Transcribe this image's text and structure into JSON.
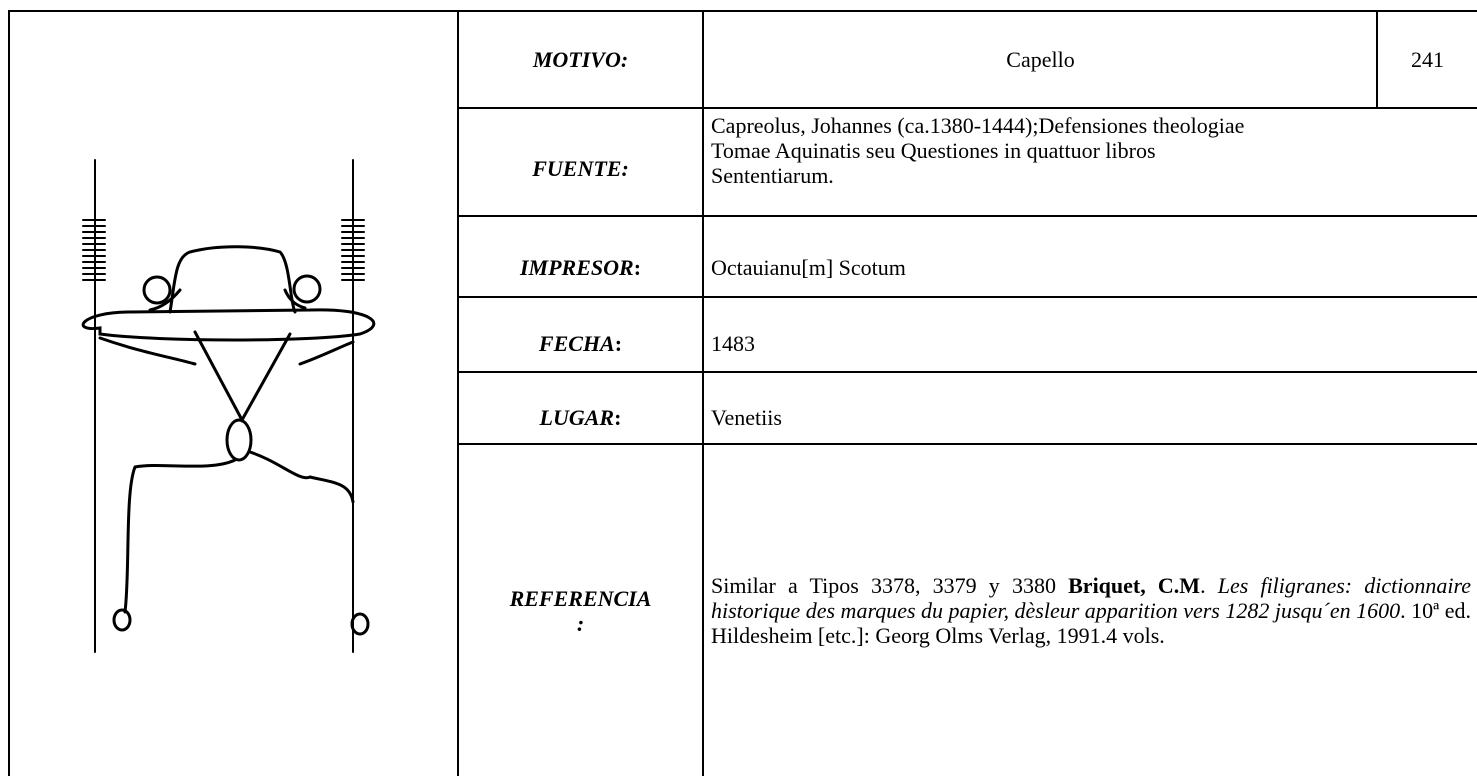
{
  "rows": [
    {
      "label": [
        "MOTIVO:"
      ],
      "value": [
        "Capello"
      ],
      "number": "241"
    },
    {
      "label": [
        "FUENTE:"
      ],
      "value": [
        "Capreolus, Johannes (ca.1380-1444);Defensiones theologiae",
        "Tomae Aquinatis seu Questiones in quattuor libros",
        "Sententiarum."
      ]
    },
    {
      "label": [
        "IMPRESOR",
        ":"
      ],
      "value": [
        "Octauianu[m] Scotum"
      ]
    },
    {
      "label": [
        "FECHA",
        ":"
      ],
      "value": [
        "1483"
      ]
    },
    {
      "label": [
        "LUGAR",
        ":"
      ],
      "value": [
        "Venetiis"
      ]
    },
    {
      "label": [
        "REFERENCIA",
        ":"
      ],
      "value": [
        "Similar a Tipos 3378, 3379 y 3380 ",
        "Briquet, C.M",
        ". ",
        "Les filigranes: dictionnaire historique des marques du papier, dèsleur apparition vers 1282 jusqu´en 1600",
        ". 10ª ed. Hildesheim [etc.]: Georg Olms Verlag, 1991.4 vols."
      ]
    }
  ]
}
